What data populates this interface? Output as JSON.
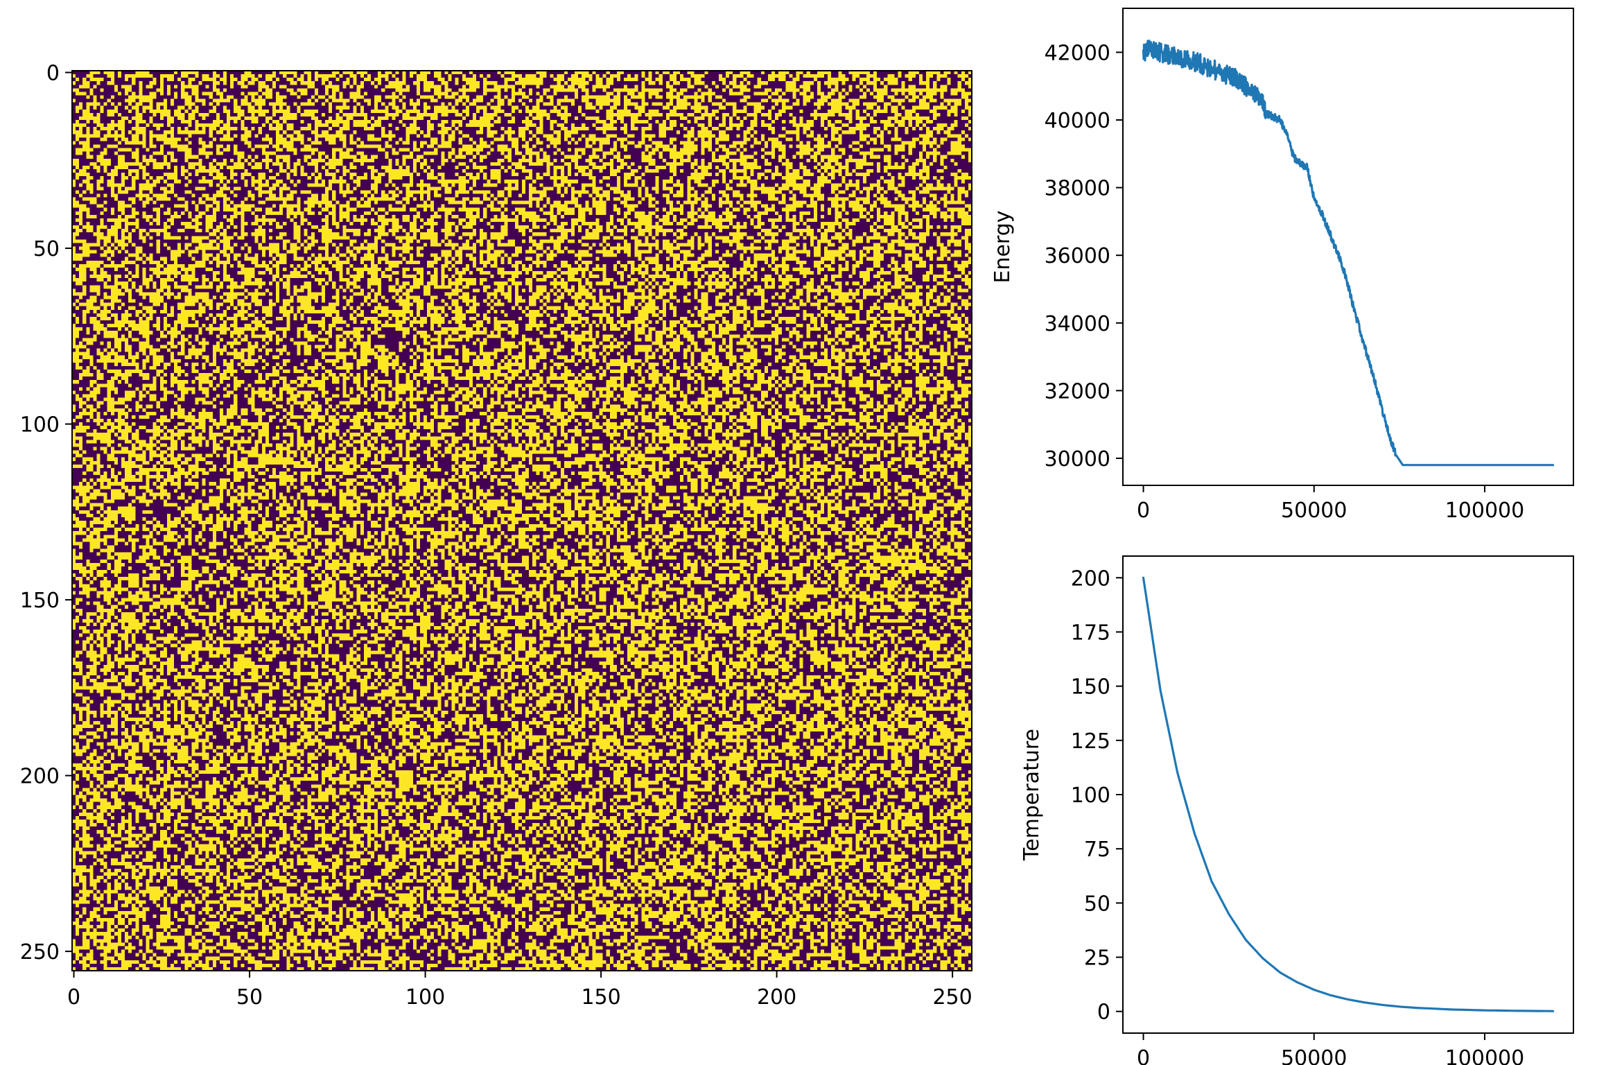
{
  "chart_data": [
    {
      "type": "heatmap",
      "title": "",
      "xlabel": "",
      "ylabel": "",
      "size": [
        256,
        256
      ],
      "xlim": [
        -0.5,
        255.5
      ],
      "ylim": [
        255.5,
        -0.5
      ],
      "y_inverted": true,
      "colors": {
        "low": "#440154",
        "high": "#fde725"
      },
      "values_description_free": "binary random field of 0/1 cells",
      "x_ticks": [
        "0",
        "50",
        "100",
        "150",
        "200",
        "250"
      ],
      "y_ticks": [
        "0",
        "50",
        "100",
        "150",
        "200",
        "250"
      ],
      "x_tick_values": [
        0,
        50,
        100,
        150,
        200,
        250
      ],
      "y_tick_values": [
        0,
        50,
        100,
        150,
        200,
        250
      ],
      "grid": false
    },
    {
      "type": "line",
      "title": "",
      "xlabel": "",
      "ylabel": "Energy",
      "xlim": [
        -6000,
        126000
      ],
      "ylim": [
        29200,
        43300
      ],
      "x_ticks": [
        "0",
        "50000",
        "100000"
      ],
      "x_tick_values": [
        0,
        50000,
        100000
      ],
      "y_ticks": [
        "30000",
        "32000",
        "34000",
        "36000",
        "38000",
        "40000",
        "42000"
      ],
      "y_tick_values": [
        30000,
        32000,
        34000,
        36000,
        38000,
        40000,
        42000
      ],
      "grid": false,
      "series": [
        {
          "color": "#1f77b4",
          "x": [
            0,
            2000,
            4000,
            6000,
            8000,
            10000,
            12000,
            14000,
            16000,
            18000,
            20000,
            22000,
            24000,
            26000,
            28000,
            30000,
            32000,
            34000,
            36000,
            38000,
            40000,
            42000,
            44000,
            46000,
            48000,
            50000,
            52000,
            54000,
            56000,
            58000,
            60000,
            62000,
            64000,
            66000,
            68000,
            70000,
            72000,
            74000,
            76000,
            80000,
            90000,
            100000,
            110000,
            120000
          ],
          "y": [
            42000,
            42100,
            42050,
            41950,
            41900,
            41850,
            41800,
            41750,
            41700,
            41600,
            41500,
            41450,
            41350,
            41300,
            41150,
            41000,
            40850,
            40700,
            40200,
            40100,
            40000,
            39600,
            38900,
            38700,
            38600,
            37700,
            37300,
            36800,
            36300,
            35800,
            35100,
            34300,
            33600,
            32900,
            32200,
            31400,
            30700,
            30100,
            29800,
            29800,
            29800,
            29800,
            29800,
            29800
          ]
        }
      ]
    },
    {
      "type": "line",
      "title": "",
      "xlabel": "",
      "ylabel": "Temperature",
      "xlim": [
        -6000,
        126000
      ],
      "ylim": [
        -10,
        210
      ],
      "x_ticks": [
        "0",
        "50000",
        "100000"
      ],
      "x_tick_values": [
        0,
        50000,
        100000
      ],
      "y_ticks": [
        "0",
        "25",
        "50",
        "75",
        "100",
        "125",
        "150",
        "175",
        "200"
      ],
      "y_tick_values": [
        0,
        25,
        50,
        75,
        100,
        125,
        150,
        175,
        200
      ],
      "grid": false,
      "series": [
        {
          "color": "#1f77b4",
          "x": [
            0,
            5000,
            10000,
            15000,
            20000,
            25000,
            30000,
            35000,
            40000,
            45000,
            50000,
            55000,
            60000,
            65000,
            70000,
            75000,
            80000,
            90000,
            100000,
            110000,
            120000
          ],
          "y": [
            200,
            148,
            110,
            82,
            60,
            45,
            33,
            24.5,
            18,
            13.5,
            10,
            7.4,
            5.5,
            4.1,
            3.0,
            2.2,
            1.65,
            0.9,
            0.5,
            0.27,
            0.15
          ]
        }
      ]
    }
  ]
}
